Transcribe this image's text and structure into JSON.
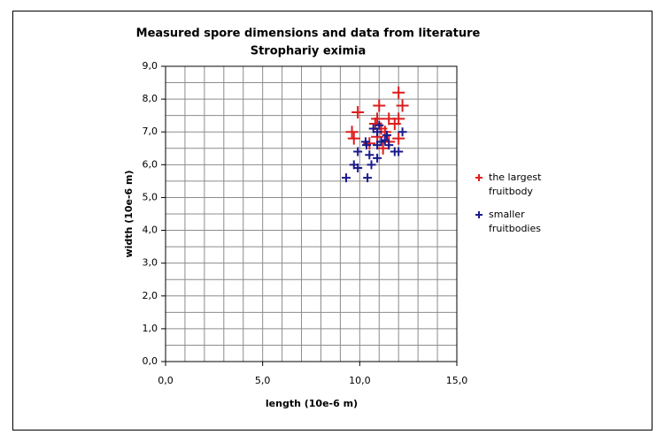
{
  "chart_data": {
    "type": "scatter",
    "title": "Measured spore dimensions and data from literature",
    "subtitle": "Strophariy eximia",
    "xlabel": "length (10e-6 m)",
    "ylabel": "width (10e-6 m)",
    "xlim": [
      0,
      15
    ],
    "ylim": [
      0,
      9
    ],
    "xticks": [
      {
        "value": 0,
        "label": "0,0"
      },
      {
        "value": 5,
        "label": "5,0"
      },
      {
        "value": 10,
        "label": "10,0"
      },
      {
        "value": 15,
        "label": "15,0"
      }
    ],
    "yticks": [
      {
        "value": 0,
        "label": "0,0"
      },
      {
        "value": 1,
        "label": "1,0"
      },
      {
        "value": 2,
        "label": "2,0"
      },
      {
        "value": 3,
        "label": "3,0"
      },
      {
        "value": 4,
        "label": "4,0"
      },
      {
        "value": 5,
        "label": "5,0"
      },
      {
        "value": 6,
        "label": "6,0"
      },
      {
        "value": 7,
        "label": "7,0"
      },
      {
        "value": 8,
        "label": "8,0"
      },
      {
        "value": 9,
        "label": "9,0"
      }
    ],
    "xgrid": [
      1,
      2,
      3,
      4,
      6,
      7,
      8,
      9,
      11,
      12,
      13,
      14
    ],
    "ygrid": [
      0.5,
      1.5,
      2.5,
      3.5,
      4.5,
      5.5,
      6.5,
      7.5,
      8.5
    ],
    "grid": true,
    "legend": "right",
    "series": [
      {
        "name": "the largest fruitbody",
        "color": "#dd1c1c",
        "marker_size": 14,
        "x": [
          12.0,
          12.2,
          11.0,
          9.9,
          9.6,
          9.7,
          10.9,
          11.5,
          12.0,
          11.8,
          10.8,
          11.3,
          12.0,
          10.9,
          11.2,
          10.5,
          11.5,
          11.1
        ],
        "values": [
          8.2,
          7.8,
          7.8,
          7.6,
          7.0,
          6.8,
          7.4,
          7.4,
          7.4,
          7.25,
          7.25,
          7.0,
          6.8,
          6.85,
          6.5,
          6.65,
          6.7,
          7.1
        ]
      },
      {
        "name": "smaller fruitbodies",
        "color": "#1a1a8c",
        "marker_size": 10,
        "x": [
          9.3,
          10.4,
          9.7,
          9.9,
          10.6,
          9.9,
          10.3,
          10.35,
          10.5,
          10.9,
          11.1,
          10.9,
          10.7,
          11.0,
          11.3,
          11.5,
          11.8,
          12.0,
          12.2,
          10.9,
          11.4
        ],
        "values": [
          5.6,
          5.6,
          6.0,
          5.9,
          6.0,
          6.4,
          6.7,
          6.6,
          6.3,
          6.6,
          6.7,
          7.0,
          7.1,
          7.2,
          6.75,
          6.6,
          6.4,
          6.4,
          7.0,
          6.2,
          6.9
        ]
      }
    ]
  }
}
